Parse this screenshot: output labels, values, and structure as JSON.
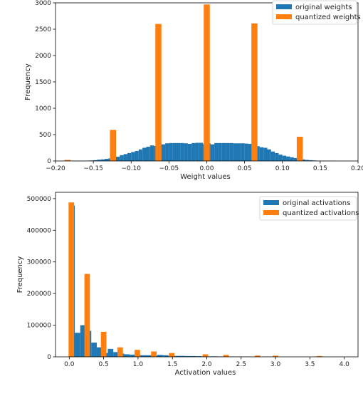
{
  "chart_data": [
    {
      "type": "bar",
      "xlabel": "Weight values",
      "ylabel": "Frequency",
      "xlim": [
        -0.2,
        0.2
      ],
      "ylim": [
        0,
        3000
      ],
      "xticks": [
        -0.2,
        -0.15,
        -0.1,
        -0.05,
        0.0,
        0.05,
        0.1,
        0.15,
        0.2
      ],
      "xtick_labels": [
        "−0.20",
        "−0.15",
        "−0.10",
        "−0.05",
        "0.00",
        "0.05",
        "0.10",
        "0.15",
        "0.20"
      ],
      "yticks": [
        0,
        500,
        1000,
        1500,
        2000,
        2500,
        3000
      ],
      "ytick_labels": [
        "0",
        "500",
        "1000",
        "1500",
        "2000",
        "2500",
        "3000"
      ],
      "legend_position": "top-right",
      "series": [
        {
          "name": "original weights",
          "color": "#1f77b4",
          "bins": [
            [
              -0.19,
              -0.185,
              5
            ],
            [
              -0.185,
              -0.18,
              5
            ],
            [
              -0.18,
              -0.175,
              5
            ],
            [
              -0.175,
              -0.17,
              5
            ],
            [
              -0.17,
              -0.165,
              5
            ],
            [
              -0.165,
              -0.16,
              5
            ],
            [
              -0.16,
              -0.155,
              5
            ],
            [
              -0.155,
              -0.15,
              10
            ],
            [
              -0.15,
              -0.145,
              15
            ],
            [
              -0.145,
              -0.14,
              25
            ],
            [
              -0.14,
              -0.135,
              30
            ],
            [
              -0.135,
              -0.13,
              40
            ],
            [
              -0.13,
              -0.125,
              50
            ],
            [
              -0.125,
              -0.12,
              60
            ],
            [
              -0.12,
              -0.115,
              80
            ],
            [
              -0.115,
              -0.11,
              110
            ],
            [
              -0.11,
              -0.105,
              130
            ],
            [
              -0.105,
              -0.1,
              150
            ],
            [
              -0.1,
              -0.095,
              170
            ],
            [
              -0.095,
              -0.09,
              190
            ],
            [
              -0.09,
              -0.085,
              220
            ],
            [
              -0.085,
              -0.08,
              250
            ],
            [
              -0.08,
              -0.075,
              270
            ],
            [
              -0.075,
              -0.07,
              295
            ],
            [
              -0.07,
              -0.065,
              285
            ],
            [
              -0.065,
              -0.06,
              335
            ],
            [
              -0.06,
              -0.055,
              315
            ],
            [
              -0.055,
              -0.05,
              335
            ],
            [
              -0.05,
              -0.045,
              340
            ],
            [
              -0.045,
              -0.04,
              340
            ],
            [
              -0.04,
              -0.035,
              340
            ],
            [
              -0.035,
              -0.03,
              340
            ],
            [
              -0.03,
              -0.025,
              335
            ],
            [
              -0.025,
              -0.02,
              325
            ],
            [
              -0.02,
              -0.015,
              340
            ],
            [
              -0.015,
              -0.01,
              345
            ],
            [
              -0.01,
              -0.005,
              345
            ],
            [
              -0.005,
              0.0,
              320
            ],
            [
              0.0,
              0.005,
              335
            ],
            [
              0.005,
              0.01,
              315
            ],
            [
              0.01,
              0.015,
              340
            ],
            [
              0.015,
              0.02,
              340
            ],
            [
              0.02,
              0.025,
              340
            ],
            [
              0.025,
              0.03,
              340
            ],
            [
              0.03,
              0.035,
              340
            ],
            [
              0.035,
              0.04,
              335
            ],
            [
              0.04,
              0.045,
              335
            ],
            [
              0.045,
              0.05,
              335
            ],
            [
              0.05,
              0.055,
              330
            ],
            [
              0.055,
              0.06,
              325
            ],
            [
              0.06,
              0.065,
              310
            ],
            [
              0.065,
              0.07,
              280
            ],
            [
              0.07,
              0.075,
              260
            ],
            [
              0.075,
              0.08,
              250
            ],
            [
              0.08,
              0.085,
              220
            ],
            [
              0.085,
              0.09,
              180
            ],
            [
              0.09,
              0.095,
              150
            ],
            [
              0.095,
              0.1,
              120
            ],
            [
              0.1,
              0.105,
              100
            ],
            [
              0.105,
              0.11,
              85
            ],
            [
              0.11,
              0.115,
              70
            ],
            [
              0.115,
              0.12,
              55
            ],
            [
              0.12,
              0.125,
              40
            ],
            [
              0.125,
              0.13,
              30
            ],
            [
              0.13,
              0.135,
              20
            ],
            [
              0.135,
              0.14,
              15
            ],
            [
              0.14,
              0.145,
              10
            ],
            [
              0.145,
              0.15,
              5
            ],
            [
              0.15,
              0.155,
              5
            ],
            [
              0.155,
              0.16,
              5
            ],
            [
              0.16,
              0.165,
              5
            ],
            [
              0.165,
              0.17,
              5
            ]
          ]
        },
        {
          "name": "quantized weights",
          "color": "#ff7f0e",
          "bins": [
            [
              -0.188,
              -0.18,
              20
            ],
            [
              -0.128,
              -0.12,
              590
            ],
            [
              -0.068,
              -0.06,
              2600
            ],
            [
              -0.004,
              0.004,
              2970
            ],
            [
              0.059,
              0.067,
              2610
            ],
            [
              0.119,
              0.127,
              460
            ]
          ]
        }
      ]
    },
    {
      "type": "bar",
      "xlabel": "Activation values",
      "ylabel": "Frequency",
      "xlim": [
        -0.2,
        4.2
      ],
      "ylim": [
        0,
        520000
      ],
      "xticks": [
        0.0,
        0.5,
        1.0,
        1.5,
        2.0,
        2.5,
        3.0,
        3.5,
        4.0
      ],
      "xtick_labels": [
        "0.0",
        "0.5",
        "1.0",
        "1.5",
        "2.0",
        "2.5",
        "3.0",
        "3.5",
        "4.0"
      ],
      "yticks": [
        0,
        100000,
        200000,
        300000,
        400000,
        500000
      ],
      "ytick_labels": [
        "0",
        "100000",
        "200000",
        "300000",
        "400000",
        "500000"
      ],
      "legend_position": "top-right",
      "series": [
        {
          "name": "original activations",
          "color": "#1f77b4",
          "bins": [
            [
              0.0,
              0.08,
              478000
            ],
            [
              0.08,
              0.16,
              76000
            ],
            [
              0.16,
              0.24,
              100000
            ],
            [
              0.24,
              0.32,
              82000
            ],
            [
              0.32,
              0.4,
              45000
            ],
            [
              0.4,
              0.48,
              30000
            ],
            [
              0.48,
              0.56,
              12000
            ],
            [
              0.56,
              0.64,
              25000
            ],
            [
              0.64,
              0.72,
              15000
            ],
            [
              0.72,
              0.8,
              10000
            ],
            [
              0.8,
              0.88,
              8000
            ],
            [
              0.88,
              0.96,
              7000
            ],
            [
              0.96,
              1.04,
              6000
            ],
            [
              1.04,
              1.12,
              5000
            ],
            [
              1.12,
              1.2,
              5000
            ],
            [
              1.2,
              1.28,
              4000
            ],
            [
              1.28,
              1.36,
              6000
            ],
            [
              1.36,
              1.44,
              5000
            ],
            [
              1.44,
              1.52,
              3000
            ],
            [
              1.52,
              1.6,
              3000
            ],
            [
              1.6,
              1.68,
              3000
            ],
            [
              1.68,
              1.76,
              2500
            ],
            [
              1.76,
              1.84,
              2500
            ],
            [
              1.84,
              1.92,
              2000
            ],
            [
              1.92,
              2.0,
              1500
            ],
            [
              2.0,
              2.08,
              1500
            ],
            [
              2.08,
              2.16,
              1500
            ],
            [
              2.16,
              2.24,
              1200
            ],
            [
              2.24,
              2.32,
              1000
            ],
            [
              2.32,
              2.4,
              800
            ],
            [
              2.4,
              2.48,
              700
            ],
            [
              2.48,
              2.56,
              600
            ],
            [
              2.56,
              2.64,
              500
            ],
            [
              2.64,
              2.72,
              400
            ],
            [
              2.72,
              2.8,
              300
            ],
            [
              2.8,
              2.88,
              300
            ],
            [
              2.88,
              2.96,
              200
            ],
            [
              2.96,
              3.04,
              200
            ],
            [
              3.04,
              3.12,
              150
            ],
            [
              3.12,
              3.2,
              100
            ],
            [
              3.2,
              3.28,
              100
            ],
            [
              3.28,
              3.36,
              80
            ],
            [
              3.36,
              3.44,
              60
            ],
            [
              3.44,
              3.52,
              50
            ],
            [
              3.52,
              3.6,
              40
            ],
            [
              3.6,
              3.68,
              30
            ],
            [
              3.68,
              3.76,
              20
            ],
            [
              3.76,
              3.84,
              15
            ],
            [
              3.84,
              3.92,
              10
            ],
            [
              3.92,
              4.0,
              5
            ]
          ]
        },
        {
          "name": "quantized activations",
          "color": "#ff7f0e",
          "bins": [
            [
              -0.01,
              0.07,
              488000
            ],
            [
              0.22,
              0.3,
              262000
            ],
            [
              0.46,
              0.54,
              79000
            ],
            [
              0.7,
              0.78,
              30000
            ],
            [
              0.95,
              1.03,
              22000
            ],
            [
              1.19,
              1.27,
              17000
            ],
            [
              1.45,
              1.53,
              12000
            ],
            [
              1.94,
              2.02,
              8000
            ],
            [
              2.24,
              2.32,
              6000
            ],
            [
              2.7,
              2.78,
              4000
            ],
            [
              2.96,
              3.04,
              3500
            ],
            [
              3.6,
              3.68,
              2500
            ]
          ]
        }
      ]
    }
  ]
}
